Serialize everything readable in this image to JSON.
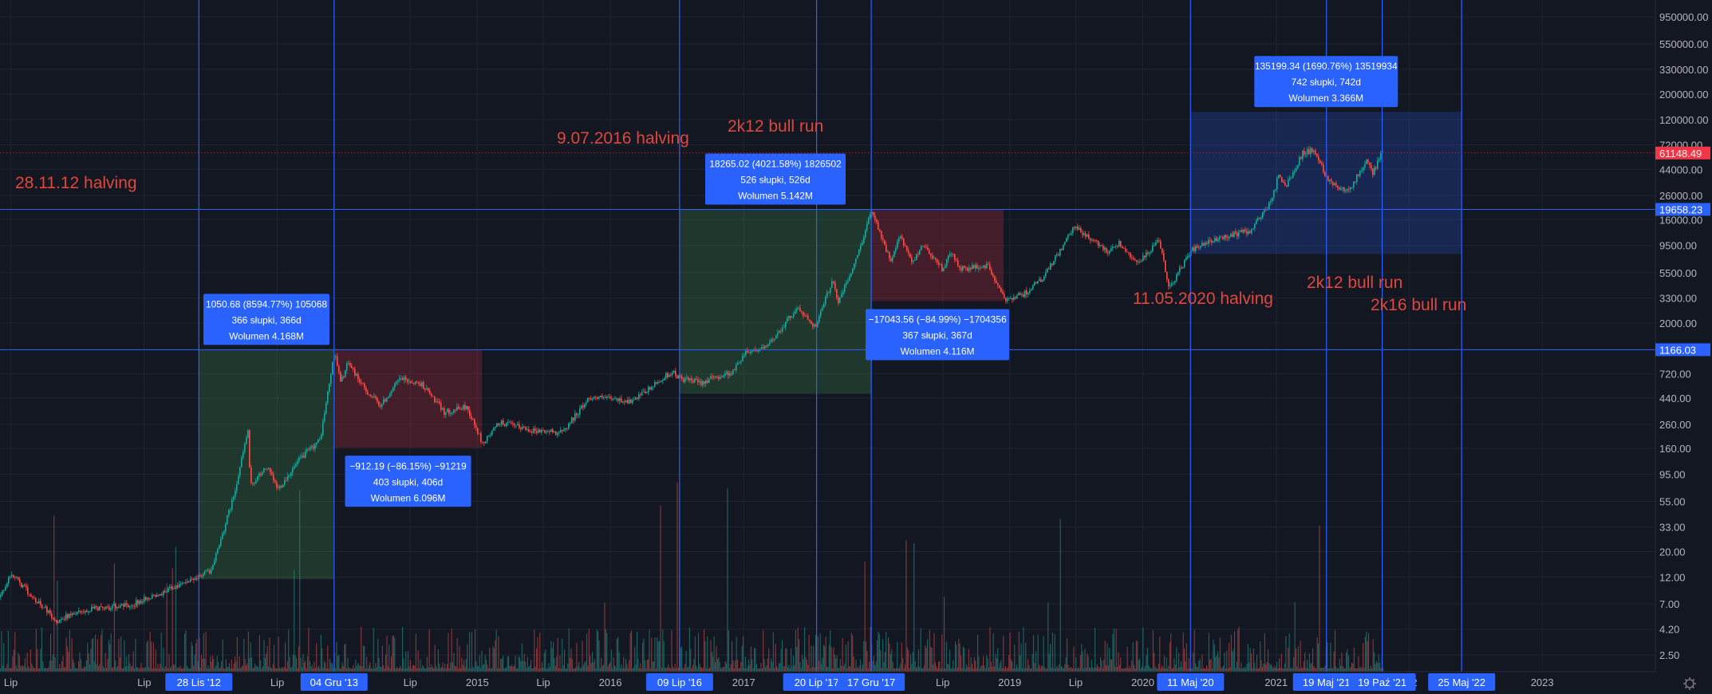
{
  "chart_data": {
    "type": "candlestick",
    "y_scale": "log",
    "ylim": [
      1.9,
      1500000
    ],
    "y_ticks": [
      "950000.00",
      "550000.00",
      "330000.00",
      "200000.00",
      "120000.00",
      "72000.00",
      "44000.00",
      "26000.00",
      "16000.00",
      "9500.00",
      "5500.00",
      "3300.00",
      "2000.00",
      "720.00",
      "440.00",
      "260.00",
      "160.00",
      "95.00",
      "55.00",
      "33.00",
      "20.00",
      "12.00",
      "7.00",
      "4.20",
      "2.50"
    ],
    "y_tick_values": [
      950000,
      550000,
      330000,
      200000,
      120000,
      72000,
      44000,
      26000,
      16000,
      9500,
      5500,
      3300,
      2000,
      720,
      440,
      260,
      160,
      95,
      55,
      33,
      20,
      12,
      7,
      4.2,
      2.5
    ],
    "x_range": [
      "2011-04-01",
      "2023-08-01"
    ],
    "x_ticks": [
      {
        "date": "2011-07-01",
        "label": "Lip"
      },
      {
        "date": "2012-07-01",
        "label": "Lip"
      },
      {
        "date": "2013-07-01",
        "label": "Lip"
      },
      {
        "date": "2014-07-01",
        "label": "Lip"
      },
      {
        "date": "2015-01-01",
        "label": "2015"
      },
      {
        "date": "2015-07-01",
        "label": "Lip"
      },
      {
        "date": "2016-01-01",
        "label": "2016"
      },
      {
        "date": "2017-01-01",
        "label": "2017"
      },
      {
        "date": "2018-07-01",
        "label": "Lip"
      },
      {
        "date": "2019-01-01",
        "label": "2019"
      },
      {
        "date": "2019-07-01",
        "label": "Lip"
      },
      {
        "date": "2020-01-01",
        "label": "2020"
      },
      {
        "date": "2021-01-01",
        "label": "2021"
      },
      {
        "date": "2022-01-01",
        "label": "2022"
      },
      {
        "date": "2023-01-01",
        "label": "2023"
      }
    ],
    "x_ticks_partial": [
      {
        "date": "2022-01-01",
        "label": "22"
      }
    ],
    "date_markers": [
      {
        "date": "2012-11-28",
        "label": "28 Lis '12"
      },
      {
        "date": "2013-12-04",
        "label": "04 Gru '13"
      },
      {
        "date": "2016-07-09",
        "label": "09 Lip '16"
      },
      {
        "date": "2017-07-20",
        "label": "20 Lip '17"
      },
      {
        "date": "2017-12-17",
        "label": "17 Gru '17"
      },
      {
        "date": "2020-05-11",
        "label": "11 Maj '20"
      },
      {
        "date": "2021-05-19",
        "label": "19 Maj '21"
      },
      {
        "date": "2021-10-19",
        "label": "19 Paź '21"
      },
      {
        "date": "2022-05-25",
        "label": "25 Maj '22"
      }
    ],
    "horizontal_levels": [
      {
        "value": 19658.23,
        "label": "19658.23",
        "color": "#2962ff"
      },
      {
        "value": 1166.03,
        "label": "1166.03",
        "color": "#2962ff"
      }
    ],
    "last_price": {
      "value": 61148.49,
      "label": "61148.49",
      "color": "#f23645"
    },
    "price_path": [
      {
        "d": "2011-04-01",
        "v": 1.9
      },
      {
        "d": "2011-06-01",
        "v": 8
      },
      {
        "d": "2011-07-01",
        "v": 13
      },
      {
        "d": "2011-08-01",
        "v": 10
      },
      {
        "d": "2011-11-01",
        "v": 5
      },
      {
        "d": "2012-01-01",
        "v": 6
      },
      {
        "d": "2012-06-01",
        "v": 7
      },
      {
        "d": "2012-11-28",
        "v": 12
      },
      {
        "d": "2013-01-01",
        "v": 14
      },
      {
        "d": "2013-03-01",
        "v": 60
      },
      {
        "d": "2013-04-10",
        "v": 230
      },
      {
        "d": "2013-04-16",
        "v": 75
      },
      {
        "d": "2013-06-01",
        "v": 110
      },
      {
        "d": "2013-07-01",
        "v": 70
      },
      {
        "d": "2013-09-01",
        "v": 130
      },
      {
        "d": "2013-10-25",
        "v": 190
      },
      {
        "d": "2013-12-04",
        "v": 1150
      },
      {
        "d": "2013-12-20",
        "v": 600
      },
      {
        "d": "2014-01-10",
        "v": 900
      },
      {
        "d": "2014-02-25",
        "v": 520
      },
      {
        "d": "2014-04-10",
        "v": 380
      },
      {
        "d": "2014-06-01",
        "v": 650
      },
      {
        "d": "2014-08-01",
        "v": 580
      },
      {
        "d": "2014-10-01",
        "v": 330
      },
      {
        "d": "2014-12-01",
        "v": 370
      },
      {
        "d": "2015-01-14",
        "v": 175
      },
      {
        "d": "2015-03-01",
        "v": 270
      },
      {
        "d": "2015-06-01",
        "v": 230
      },
      {
        "d": "2015-08-20",
        "v": 220
      },
      {
        "d": "2015-11-04",
        "v": 450
      },
      {
        "d": "2016-01-01",
        "v": 430
      },
      {
        "d": "2016-03-01",
        "v": 410
      },
      {
        "d": "2016-06-16",
        "v": 750
      },
      {
        "d": "2016-07-09",
        "v": 650
      },
      {
        "d": "2016-09-01",
        "v": 600
      },
      {
        "d": "2016-12-01",
        "v": 750
      },
      {
        "d": "2017-01-04",
        "v": 1130
      },
      {
        "d": "2017-03-01",
        "v": 1200
      },
      {
        "d": "2017-05-25",
        "v": 2700
      },
      {
        "d": "2017-07-16",
        "v": 1850
      },
      {
        "d": "2017-09-01",
        "v": 4900
      },
      {
        "d": "2017-09-15",
        "v": 3000
      },
      {
        "d": "2017-11-01",
        "v": 6700
      },
      {
        "d": "2017-12-17",
        "v": 19658
      },
      {
        "d": "2018-02-06",
        "v": 6800
      },
      {
        "d": "2018-03-05",
        "v": 11500
      },
      {
        "d": "2018-04-06",
        "v": 6600
      },
      {
        "d": "2018-05-05",
        "v": 9800
      },
      {
        "d": "2018-06-29",
        "v": 5900
      },
      {
        "d": "2018-07-25",
        "v": 8400
      },
      {
        "d": "2018-08-14",
        "v": 5900
      },
      {
        "d": "2018-11-01",
        "v": 6300
      },
      {
        "d": "2018-12-15",
        "v": 3200
      },
      {
        "d": "2019-02-08",
        "v": 3600
      },
      {
        "d": "2019-04-02",
        "v": 5000
      },
      {
        "d": "2019-06-26",
        "v": 13800
      },
      {
        "d": "2019-09-24",
        "v": 8500
      },
      {
        "d": "2019-10-26",
        "v": 10000
      },
      {
        "d": "2019-12-18",
        "v": 6600
      },
      {
        "d": "2020-02-13",
        "v": 10400
      },
      {
        "d": "2020-03-12",
        "v": 4000
      },
      {
        "d": "2020-05-11",
        "v": 8600
      },
      {
        "d": "2020-07-27",
        "v": 11000
      },
      {
        "d": "2020-10-21",
        "v": 12900
      },
      {
        "d": "2020-12-17",
        "v": 23000
      },
      {
        "d": "2021-01-08",
        "v": 41000
      },
      {
        "d": "2021-01-22",
        "v": 30000
      },
      {
        "d": "2021-03-13",
        "v": 61000
      },
      {
        "d": "2021-04-14",
        "v": 64800
      },
      {
        "d": "2021-05-19",
        "v": 37000
      },
      {
        "d": "2021-06-22",
        "v": 30000
      },
      {
        "d": "2021-07-20",
        "v": 30000
      },
      {
        "d": "2021-09-06",
        "v": 52000
      },
      {
        "d": "2021-09-21",
        "v": 40500
      },
      {
        "d": "2021-10-19",
        "v": 64000
      },
      {
        "d": "2021-10-21",
        "v": 61148.49
      }
    ],
    "ranges": [
      {
        "from": "2012-11-28",
        "to": "2013-12-04",
        "low": 11.5,
        "high": 1166.03,
        "color": "green",
        "label": {
          "line1": "1050.68 (8594.77%) 105068",
          "line2": "366 słupki, 366d",
          "line3": "Wolumen 4.168M"
        }
      },
      {
        "from": "2013-12-04",
        "to": "2015-01-14",
        "low": 162,
        "high": 1166.03,
        "color": "red",
        "label": {
          "line1": "−912.19 (−86.15%) −91219",
          "line2": "403 słupki, 406d",
          "line3": "Wolumen 6.096M"
        }
      },
      {
        "from": "2016-07-09",
        "to": "2017-12-17",
        "low": 480,
        "high": 19658.23,
        "color": "green",
        "label": {
          "line1": "18265.02 (4021.58%) 1826502",
          "line2": "526 słupki, 526d",
          "line3": "Wolumen 5.142M"
        }
      },
      {
        "from": "2017-12-17",
        "to": "2018-12-15",
        "low": 3100,
        "high": 19658.23,
        "color": "red",
        "label": {
          "line1": "−17043.56 (−84.99%) −1704356",
          "line2": "367 słupki, 367d",
          "line3": "Wolumen 4.116M"
        }
      },
      {
        "from": "2020-05-11",
        "to": "2022-05-25",
        "low": 8000,
        "high": 140000,
        "color": "blue",
        "label": {
          "line1": "135199.34 (1690.76%) 13519934",
          "line2": "742 słupki, 742d",
          "line3": "Wolumen 3.366M"
        }
      }
    ],
    "annotations": [
      {
        "text": "28.11.12 halving",
        "color": "#e0473c"
      },
      {
        "text": "9.07.2016 halving",
        "color": "#e0473c"
      },
      {
        "text": "2k12 bull run",
        "color": "#e0473c"
      },
      {
        "text": "11.05.2020 halving",
        "color": "#e0473c"
      },
      {
        "text": "2k12 bull run",
        "color": "#e0473c"
      },
      {
        "text": "2k16 bull run",
        "color": "#e0473c"
      }
    ],
    "colors": {
      "up": "#26a69a",
      "down": "#ef5350",
      "marker": "#2962ff",
      "background": "#131722",
      "grid": "#1f2430"
    }
  }
}
